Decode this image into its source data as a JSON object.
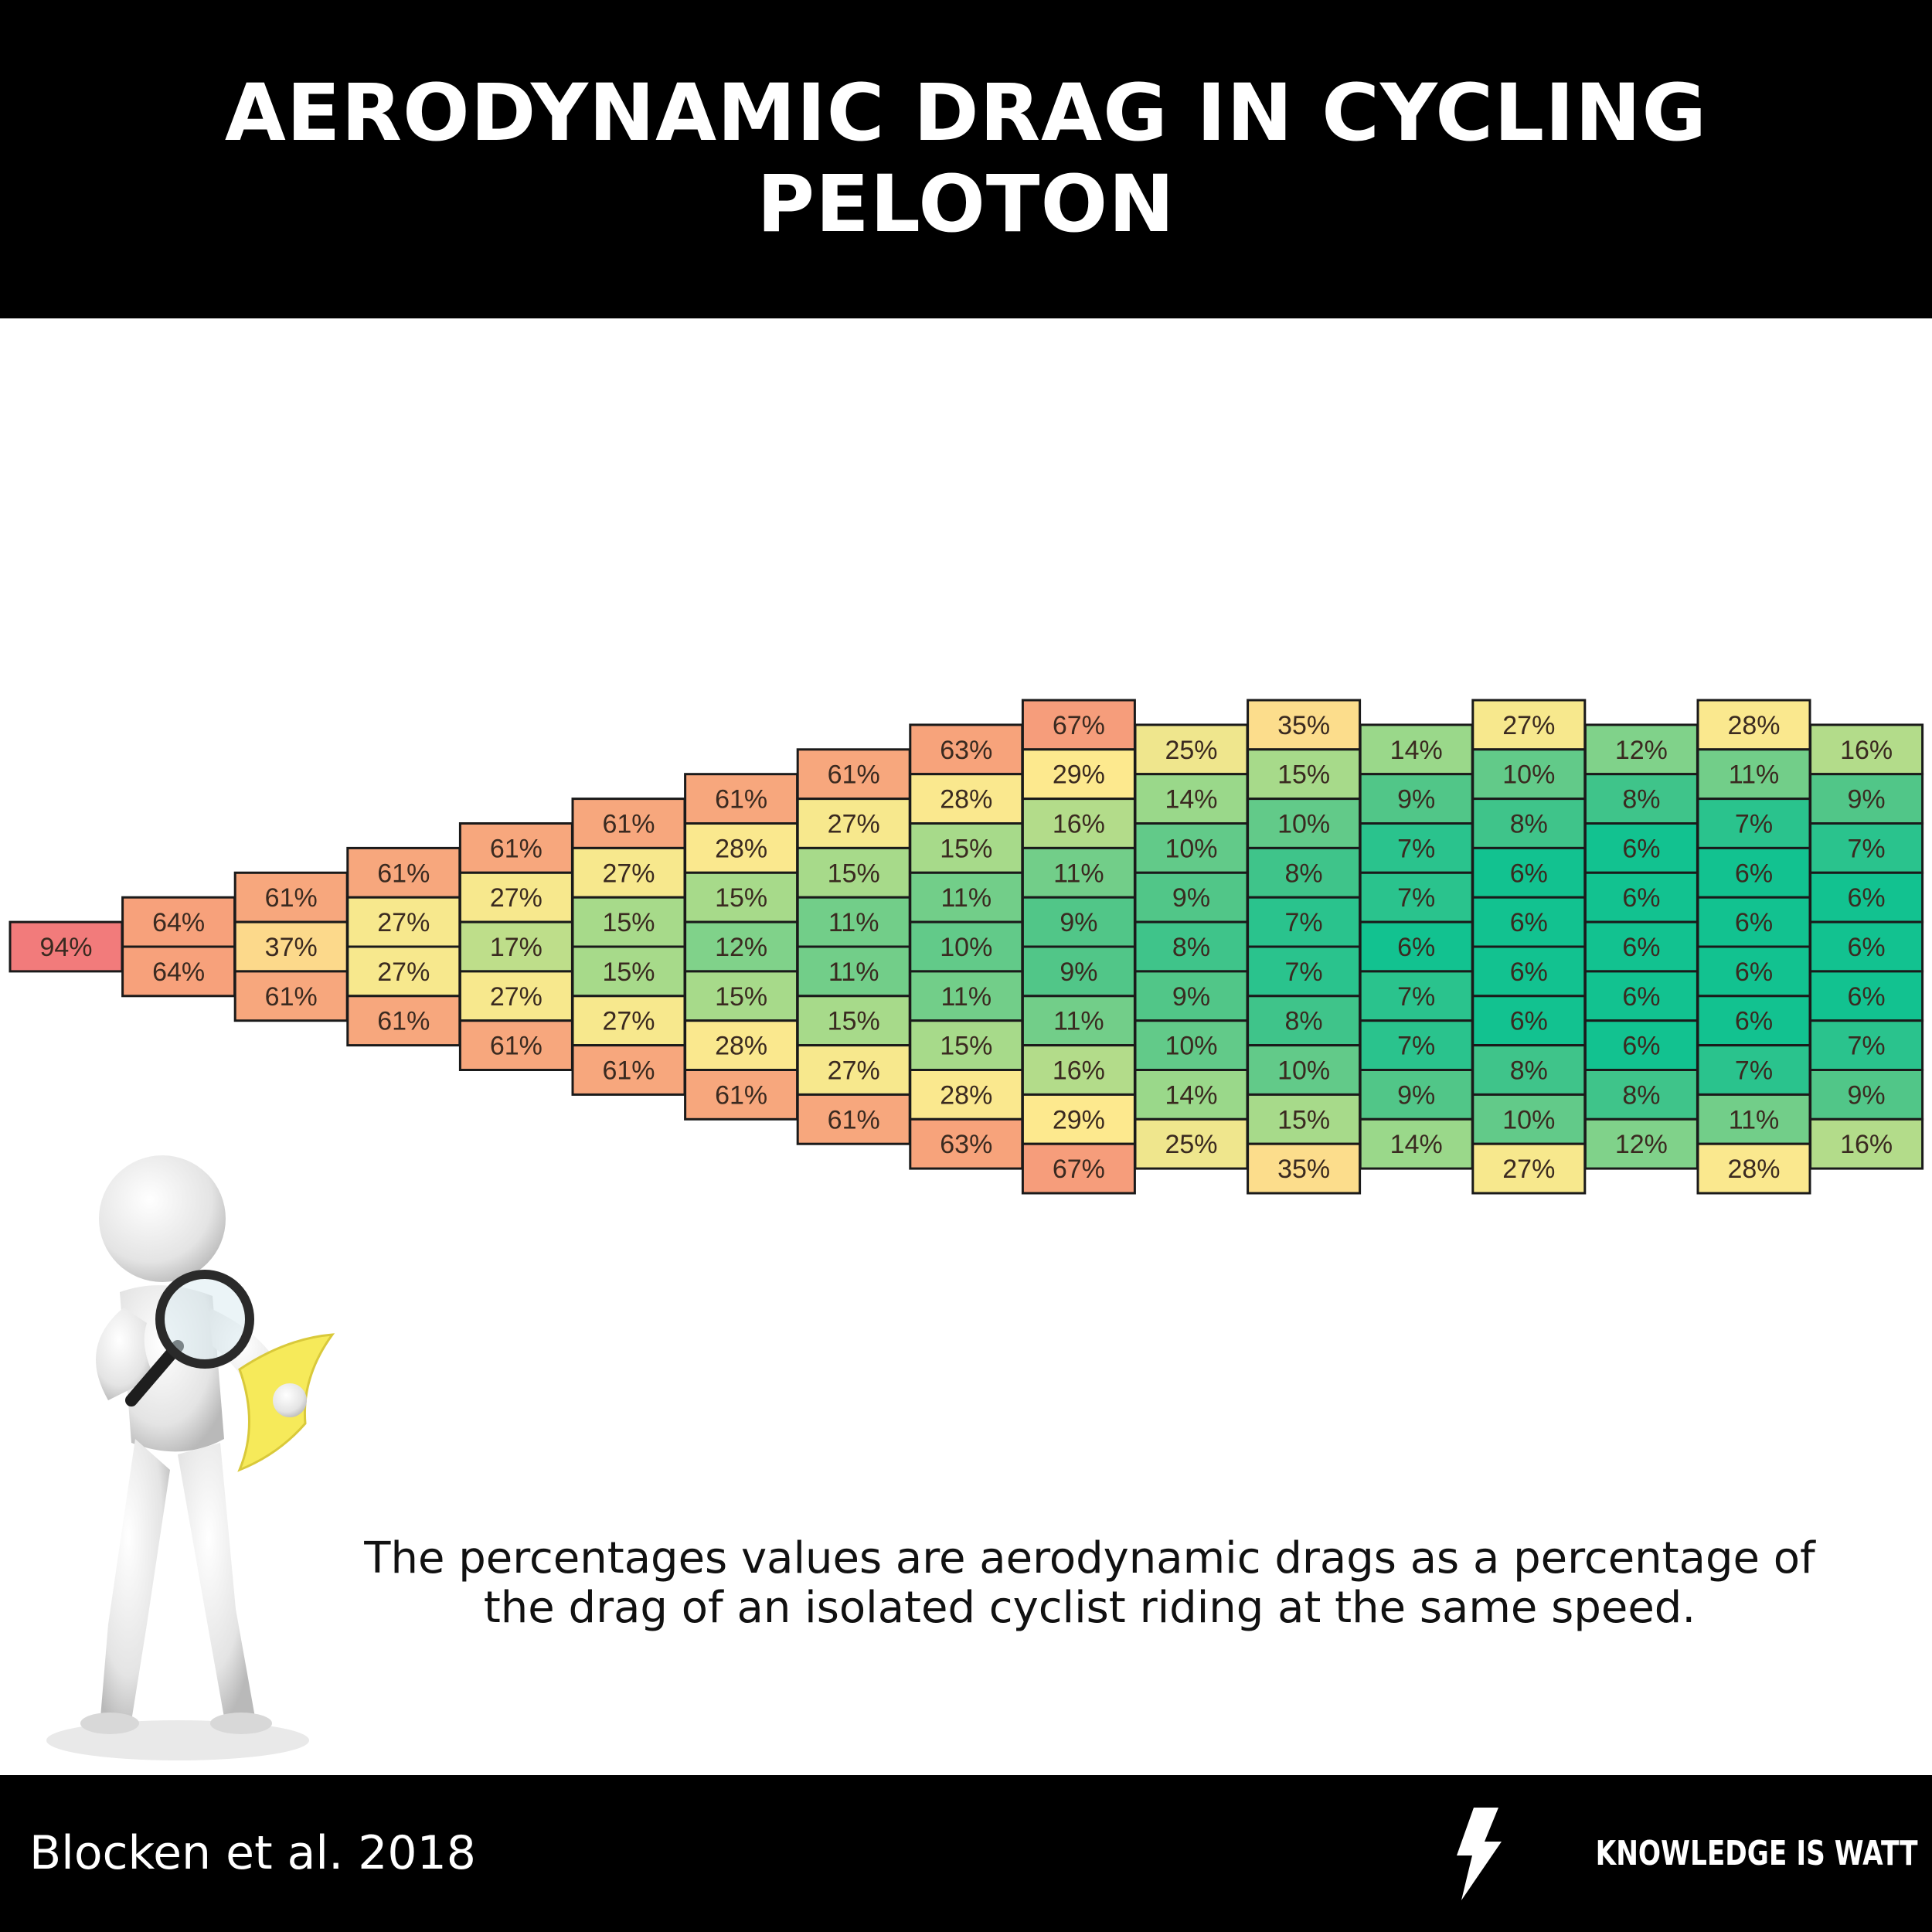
{
  "header": {
    "title_line1": "AERODYNAMIC DRAG IN CYCLING",
    "title_line2": "PELOTON"
  },
  "chart_data": {
    "type": "heatmap",
    "title": "AERODYNAMIC DRAG IN CYCLING PELOTON",
    "unit": "%",
    "columns": [
      [
        94
      ],
      [
        64,
        64
      ],
      [
        61,
        37,
        61
      ],
      [
        61,
        27,
        27,
        61
      ],
      [
        61,
        27,
        17,
        27,
        61
      ],
      [
        61,
        27,
        15,
        15,
        27,
        61
      ],
      [
        61,
        28,
        15,
        12,
        15,
        28,
        61
      ],
      [
        61,
        27,
        15,
        11,
        11,
        15,
        27,
        61
      ],
      [
        63,
        28,
        15,
        11,
        10,
        11,
        15,
        28,
        63
      ],
      [
        67,
        29,
        16,
        11,
        9,
        9,
        11,
        16,
        29,
        67
      ],
      [
        25,
        14,
        10,
        9,
        8,
        9,
        10,
        14,
        25
      ],
      [
        35,
        15,
        10,
        8,
        7,
        7,
        8,
        10,
        15,
        35
      ],
      [
        14,
        9,
        7,
        7,
        6,
        7,
        7,
        9,
        14
      ],
      [
        27,
        10,
        8,
        6,
        6,
        6,
        6,
        8,
        10,
        27
      ],
      [
        12,
        8,
        6,
        6,
        6,
        6,
        6,
        8,
        12
      ],
      [
        28,
        11,
        7,
        6,
        6,
        6,
        6,
        7,
        11,
        28
      ],
      [
        16,
        9,
        7,
        6,
        6,
        6,
        7,
        9,
        16
      ]
    ],
    "color_scale": [
      "#f27b7b",
      "#f7a27b",
      "#fbd08a",
      "#fde98e",
      "#d8e28a",
      "#8fd68a",
      "#4fc588",
      "#12c290"
    ]
  },
  "caption": {
    "line1": "The percentages values are aerodynamic drags  as a percentage of",
    "line2": "the drag of an isolated cyclist riding at the same speed."
  },
  "footer": {
    "source": "Blocken et al. 2018",
    "brand": "KNOWLEDGE IS WATT"
  }
}
